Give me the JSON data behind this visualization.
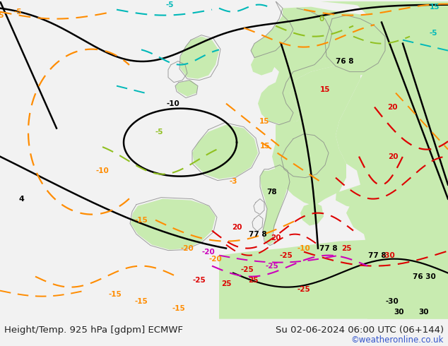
{
  "title_left": "Height/Temp. 925 hPa [gdpm] ECMWF",
  "title_right": "Su 02-06-2024 06:00 UTC (06+144)",
  "credit": "©weatheronline.co.uk",
  "bg_ocean": "#e8e8e8",
  "bg_land": "#c8ebb0",
  "text_color": "#222222",
  "credit_color": "#3355cc",
  "title_fontsize": 9.5,
  "credit_fontsize": 8.5,
  "fig_width": 6.34,
  "fig_height": 4.9,
  "dpi": 100,
  "orange": "#ff8c00",
  "cyan": "#00b8b8",
  "yellow_green": "#90c020",
  "red": "#dd0000",
  "magenta": "#cc00bb",
  "black": "#000000",
  "gray": "#888888"
}
